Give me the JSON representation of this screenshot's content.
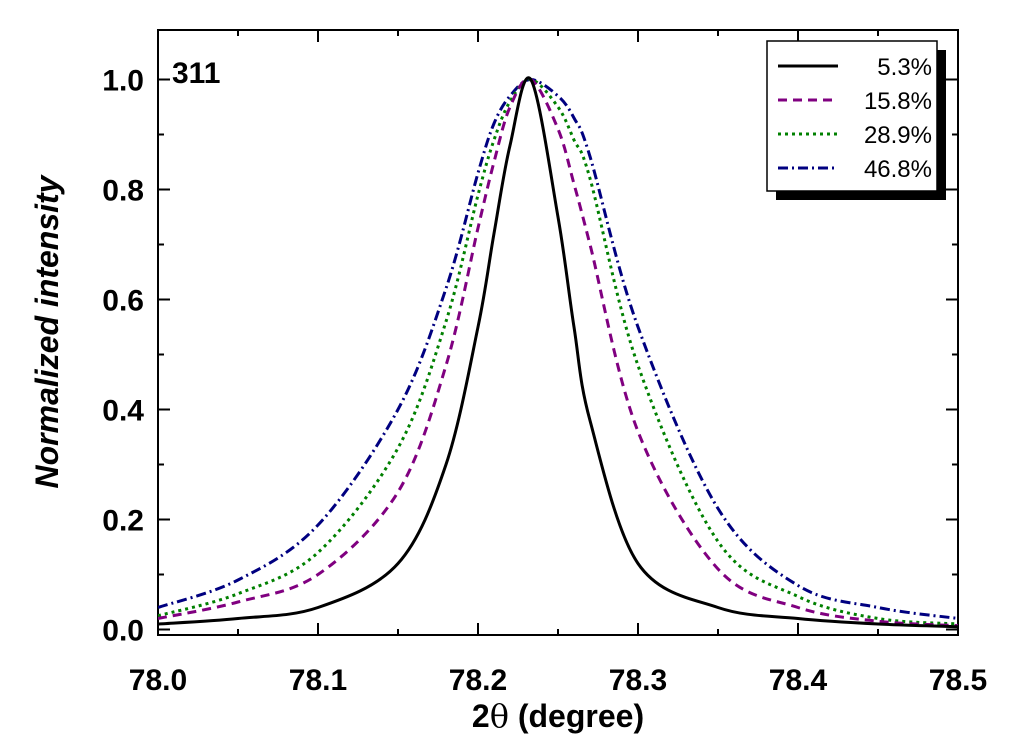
{
  "chart_data": {
    "type": "line",
    "panel_label": "311",
    "xlabel_prefix": "2",
    "xlabel_symbol": "θ",
    "xlabel_suffix": " (degree)",
    "ylabel": "Normalized intensity",
    "xlim": [
      78.0,
      78.5
    ],
    "ylim": [
      -0.01,
      1.09
    ],
    "x_ticks": [
      78.0,
      78.1,
      78.2,
      78.3,
      78.4,
      78.5
    ],
    "x_tick_labels": [
      "78.0",
      "78.1",
      "78.2",
      "78.3",
      "78.4",
      "78.5"
    ],
    "y_ticks": [
      0.0,
      0.2,
      0.4,
      0.6,
      0.8,
      1.0
    ],
    "y_tick_labels": [
      "0.0",
      "0.2",
      "0.4",
      "0.6",
      "0.8",
      "1.0"
    ],
    "legend_position": "top-right",
    "x": [
      78.0,
      78.05,
      78.1,
      78.15,
      78.18,
      78.2,
      78.21,
      78.22,
      78.233,
      78.25,
      78.26,
      78.27,
      78.3,
      78.35,
      78.4,
      78.45,
      78.5
    ],
    "series": [
      {
        "name": "5.3%",
        "color": "#000000",
        "dash": "none",
        "values": [
          0.01,
          0.02,
          0.04,
          0.12,
          0.3,
          0.55,
          0.72,
          0.88,
          1.0,
          0.75,
          0.55,
          0.38,
          0.12,
          0.04,
          0.02,
          0.01,
          0.005
        ]
      },
      {
        "name": "15.8%",
        "color": "#800080",
        "dash": "9,6",
        "values": [
          0.02,
          0.05,
          0.1,
          0.25,
          0.48,
          0.73,
          0.85,
          0.95,
          1.0,
          0.91,
          0.81,
          0.7,
          0.36,
          0.11,
          0.04,
          0.015,
          0.007
        ]
      },
      {
        "name": "28.9%",
        "color": "#008000",
        "dash": "3,4",
        "values": [
          0.025,
          0.065,
          0.14,
          0.33,
          0.56,
          0.79,
          0.89,
          0.96,
          1.0,
          0.95,
          0.89,
          0.82,
          0.48,
          0.16,
          0.06,
          0.02,
          0.01
        ]
      },
      {
        "name": "46.8%",
        "color": "#000080",
        "dash": "10,4,2,4",
        "values": [
          0.04,
          0.09,
          0.19,
          0.4,
          0.62,
          0.83,
          0.92,
          0.97,
          1.0,
          0.97,
          0.93,
          0.86,
          0.55,
          0.22,
          0.08,
          0.04,
          0.02
        ]
      }
    ]
  }
}
